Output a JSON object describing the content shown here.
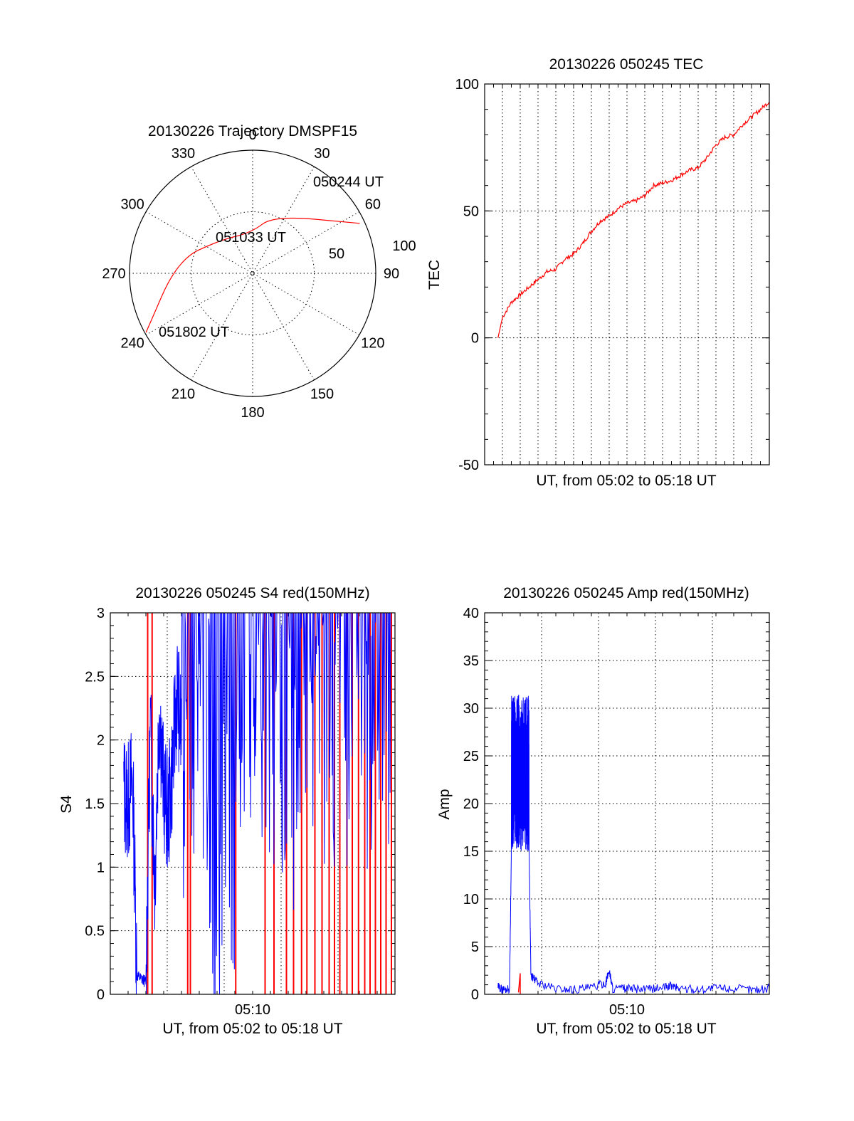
{
  "chart_data": [
    {
      "type": "polar",
      "title": "20130226 Trajectory DMSPF15",
      "angle_labels": [
        "0",
        "30",
        "60",
        "90",
        "120",
        "150",
        "180",
        "210",
        "240",
        "270",
        "300",
        "330"
      ],
      "radius_labels": [
        "50",
        "100"
      ],
      "rlim": [
        0,
        100
      ],
      "grid": true,
      "series": [
        {
          "color": "#ff0000",
          "points": [
            {
              "time": "050244 UT",
              "azimuth": 65,
              "radius": 96
            },
            {
              "azimuth": 20,
              "radius": 50
            },
            {
              "time": "051033 UT",
              "azimuth": 358,
              "radius": 33
            },
            {
              "azimuth": 315,
              "radius": 38
            },
            {
              "azimuth": 280,
              "radius": 62
            },
            {
              "time": "051802 UT",
              "azimuth": 241,
              "radius": 99
            }
          ]
        }
      ],
      "annotations": [
        "050244 UT",
        "051033 UT",
        "051802 UT"
      ]
    },
    {
      "type": "line",
      "title": "20130226 050245 TEC",
      "ylabel": "TEC",
      "xlabel": "UT, from 05:02 to 05:18 UT",
      "ylim": [
        -50,
        100
      ],
      "yticks": [
        "-50",
        "0",
        "50",
        "100"
      ],
      "xlim_minutes": [
        0,
        16
      ],
      "grid": true,
      "series": [
        {
          "color": "#ff0000",
          "x_minutes": [
            0.75,
            1.0,
            1.5,
            2.0,
            2.5,
            3.0,
            3.5,
            4.0,
            4.5,
            5.0,
            5.5,
            6.0,
            6.5,
            7.0,
            7.5,
            8.0,
            8.5,
            9.0,
            9.5,
            10.0,
            10.5,
            11.0,
            11.5,
            12.0,
            12.5,
            13.0,
            13.5,
            14.0,
            14.5,
            15.0,
            15.5,
            16.0
          ],
          "y": [
            0,
            8,
            14,
            17,
            20,
            23,
            26,
            27,
            31,
            33,
            37,
            42,
            46,
            48,
            51,
            53,
            54,
            56,
            60,
            61,
            62,
            64,
            66,
            67,
            71,
            76,
            79,
            80,
            84,
            87,
            90,
            93
          ]
        }
      ]
    },
    {
      "type": "line",
      "title": "20130226 050245 S4 red(150MHz)",
      "ylabel": "S4",
      "xlabel": "UT, from 05:02 to 05:18 UT",
      "ylim": [
        0,
        3
      ],
      "yticks": [
        "0",
        "0.5",
        "1",
        "1.5",
        "2",
        "2.5",
        "3"
      ],
      "xlim_minutes": [
        0,
        16
      ],
      "xticks": [
        {
          "minute": 8,
          "label": "05:10"
        }
      ],
      "grid": true,
      "series": [
        {
          "color": "#0000ff",
          "note": "dense noisy trace",
          "x_minutes": [
            0.75,
            1.0,
            1.25,
            1.5,
            1.75,
            2.0,
            2.25,
            2.5,
            2.75,
            3.0,
            3.25,
            3.5,
            3.75,
            4.0,
            4.5,
            5.0,
            5.5,
            6.0,
            6.5,
            7.0,
            7.5,
            8.0,
            8.5,
            9.0,
            9.5,
            10.0,
            10.5,
            11.0,
            11.5,
            12.0,
            12.5,
            13.0,
            13.5,
            14.0,
            14.5,
            15.0,
            15.5,
            16.0
          ],
          "y": [
            1.6,
            1.5,
            1.7,
            0.15,
            0.12,
            0.1,
            2.1,
            0.9,
            2.3,
            1.6,
            1.4,
            1.8,
            2.4,
            2.0,
            2.2,
            2.0,
            1.9,
            0.65,
            2.2,
            0.35,
            2.6,
            2.3,
            2.1,
            2.4,
            2.0,
            2.5,
            0.9,
            2.2,
            2.6,
            2.4,
            2.0,
            2.5,
            2.2,
            2.6,
            2.3,
            2.5,
            2.0,
            2.4
          ]
        },
        {
          "color": "#ff0000",
          "note": "vertical spikes 0 to 3",
          "spike_x_minutes": [
            2.1,
            2.35,
            4.35,
            4.5,
            7.05,
            8.7,
            9.2,
            9.9,
            10.3,
            10.75,
            11.05,
            11.5,
            11.9,
            12.3,
            12.6,
            12.9,
            13.3,
            13.6,
            13.95,
            14.3,
            14.6,
            14.9,
            15.2,
            15.5,
            15.8
          ]
        }
      ]
    },
    {
      "type": "line",
      "title": "20130226 050245 Amp red(150MHz)",
      "ylabel": "Amp",
      "xlabel": "UT, from 05:02 to 05:18 UT",
      "ylim": [
        0,
        40
      ],
      "yticks": [
        "0",
        "5",
        "10",
        "15",
        "20",
        "25",
        "30",
        "35",
        "40"
      ],
      "xlim_minutes": [
        0,
        16
      ],
      "xticks": [
        {
          "minute": 8,
          "label": "05:10"
        }
      ],
      "grid": true,
      "series": [
        {
          "color": "#0000ff",
          "note": "noisy baseline near 0.5, burst 15-31 between 1.5 and 2.5 min",
          "x_minutes": [
            0.75,
            1.0,
            1.4,
            1.5,
            1.6,
            1.8,
            2.0,
            2.2,
            2.4,
            2.5,
            2.6,
            3.0,
            4.0,
            5.0,
            6.0,
            6.8,
            7.0,
            7.2,
            8.0,
            9.0,
            10.0,
            10.5,
            11.0,
            12.0,
            13.0,
            14.0,
            15.0,
            16.0
          ],
          "y": [
            0.8,
            0.5,
            0.6,
            15,
            31,
            23,
            30,
            19,
            28,
            15,
            2.0,
            1.2,
            0.6,
            0.5,
            0.7,
            1.2,
            2.5,
            0.6,
            0.6,
            0.5,
            0.7,
            0.9,
            0.6,
            0.5,
            0.7,
            0.6,
            0.5,
            0.6
          ]
        },
        {
          "color": "#ff0000",
          "note": "short red marks near zero",
          "x_minutes": [
            1.9,
            2.0
          ],
          "y": [
            0.2,
            2.2
          ]
        }
      ]
    }
  ]
}
